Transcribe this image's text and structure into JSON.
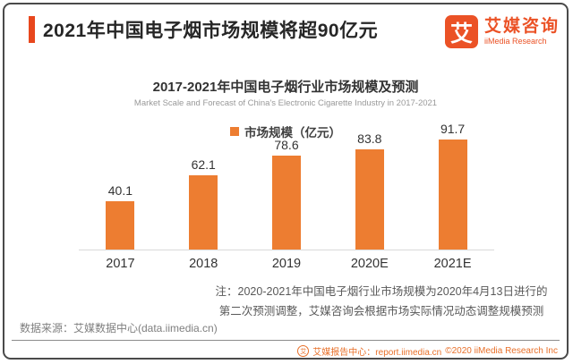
{
  "header": {
    "title": "2021年中国电子烟市场规模将超90亿元",
    "accent_color": "#E8471D"
  },
  "logo": {
    "mark": "艾",
    "name_cn": "艾媒咨询",
    "name_en": "iiMedia Research",
    "color": "#EB5226"
  },
  "chart_data": {
    "type": "bar",
    "title": "2017-2021年中国电子烟行业市场规模及预测",
    "subtitle": "Market Scale and Forecast of China's Electronic Cigarette Industry in 2017-2021",
    "legend": "市场规模（亿元）",
    "legend_position": "top-center",
    "categories": [
      "2017",
      "2018",
      "2019",
      "2020E",
      "2021E"
    ],
    "values": [
      40.1,
      62.1,
      78.6,
      83.8,
      91.7
    ],
    "bar_color": "#ED7D31",
    "xlabel": "",
    "ylabel": "市场规模（亿元）",
    "ylim": [
      0,
      100
    ],
    "grid": false,
    "y_axis_visible": false,
    "data_labels_visible": true
  },
  "note": {
    "line1": "注：2020-2021年中国电子烟行业市场规模为2020年4月13日进行的",
    "line2": "第二次预测调整，艾媒咨询会根据市场实际情况动态调整规模预测"
  },
  "source": {
    "text": "数据来源：艾媒数据中心(data.iimedia.cn)"
  },
  "footer": {
    "icon": "艾",
    "text": "艾媒报告中心：report.iimedia.cn",
    "copyright": "©2020  iiMedia Research Inc",
    "color": "#E8702A"
  }
}
